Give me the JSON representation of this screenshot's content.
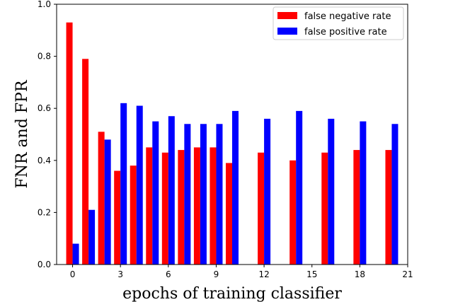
{
  "chart_data": {
    "type": "bar",
    "xlabel": "epochs of training classifier",
    "ylabel": "FNR and FPR",
    "xlim": [
      -1,
      21
    ],
    "ylim": [
      0.0,
      1.0
    ],
    "xticks": [
      "0",
      "3",
      "6",
      "9",
      "12",
      "15",
      "18",
      "21"
    ],
    "yticks": [
      "0.0",
      "0.2",
      "0.4",
      "0.6",
      "0.8",
      "1.0"
    ],
    "grid": false,
    "legend_position": "top-right",
    "series": [
      {
        "name": "false negative rate",
        "color": "#ff0000",
        "x": [
          0,
          1,
          2,
          3,
          4,
          5,
          6,
          7,
          8,
          9,
          10,
          12,
          14,
          16,
          18,
          20
        ],
        "values": [
          0.93,
          0.79,
          0.51,
          0.36,
          0.38,
          0.45,
          0.43,
          0.44,
          0.45,
          0.45,
          0.39,
          0.43,
          0.4,
          0.43,
          0.44,
          0.44
        ]
      },
      {
        "name": "false positive rate",
        "color": "#0000ff",
        "x": [
          0,
          1,
          2,
          3,
          4,
          5,
          6,
          7,
          8,
          9,
          10,
          12,
          14,
          16,
          18,
          20
        ],
        "values": [
          0.08,
          0.21,
          0.48,
          0.62,
          0.61,
          0.55,
          0.57,
          0.54,
          0.54,
          0.54,
          0.59,
          0.56,
          0.59,
          0.56,
          0.55,
          0.54
        ]
      }
    ]
  }
}
